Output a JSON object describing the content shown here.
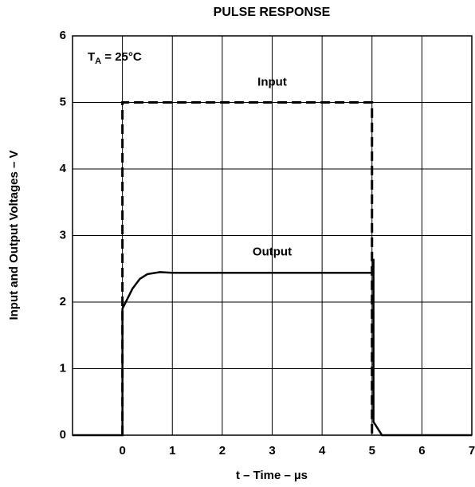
{
  "chart_data": {
    "type": "line",
    "title": "PULSE RESPONSE",
    "xlabel": "t – Time – µs",
    "ylabel": "Input and Output Voltages – V",
    "xlim": [
      -1,
      7
    ],
    "xticks": [
      0,
      1,
      2,
      3,
      4,
      5,
      6,
      7
    ],
    "ylim": [
      0,
      6
    ],
    "yticks": [
      0,
      1,
      2,
      3,
      4,
      5,
      6
    ],
    "grid": true,
    "series": [
      {
        "name": "Input",
        "color": "#000000",
        "dashed": true,
        "x": [
          0,
          0,
          5,
          5
        ],
        "values": [
          0,
          5,
          5,
          0
        ]
      },
      {
        "name": "Output",
        "color": "#000000",
        "dashed": false,
        "x": [
          -1,
          0,
          0,
          0.1,
          0.2,
          0.35,
          0.5,
          0.75,
          1,
          5,
          5.03,
          5.03,
          5.2,
          7
        ],
        "values": [
          0,
          0,
          1.9,
          2.05,
          2.2,
          2.35,
          2.42,
          2.45,
          2.44,
          2.44,
          2.65,
          0.2,
          0,
          0
        ]
      }
    ],
    "annotations": [
      {
        "text": "Input",
        "x": 3,
        "y": 5.3
      },
      {
        "text": "Output",
        "x": 3,
        "y": 2.75
      }
    ],
    "condition": {
      "symbol": "T",
      "subscript": "A",
      "rest": " = 25°C"
    }
  }
}
